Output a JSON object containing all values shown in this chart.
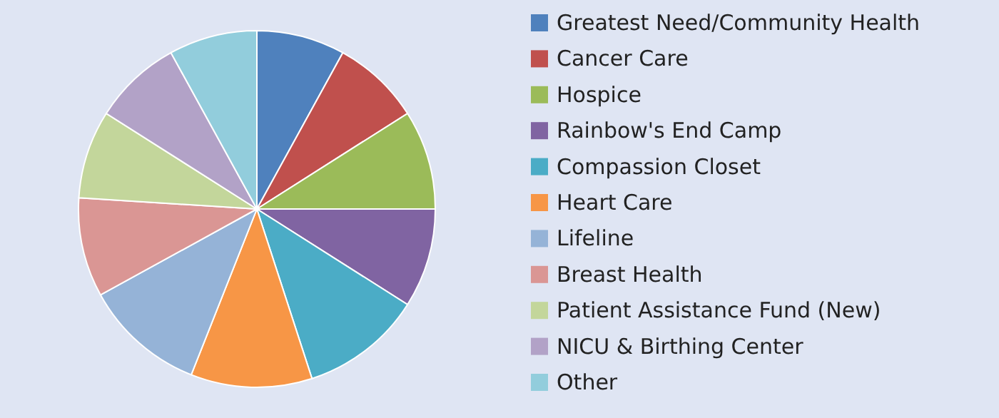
{
  "chart_data": {
    "type": "pie",
    "categories": [
      "Greatest Need/Community Health",
      "Cancer Care",
      "Hospice",
      "Rainbow's End Camp",
      "Compassion Closet",
      "Heart Care",
      "Lifeline",
      "Breast Health",
      "Patient Assistance Fund (New)",
      "NICU & Birthing Center",
      "Other"
    ],
    "values": [
      8,
      8,
      9,
      9,
      11,
      11,
      11,
      9,
      8,
      8,
      8
    ],
    "colors": [
      "#4f81bd",
      "#c0504d",
      "#9bbb59",
      "#8064a2",
      "#4bacc6",
      "#f79646",
      "#95b3d7",
      "#da9694",
      "#c3d69b",
      "#b2a2c7",
      "#92cddc"
    ],
    "legend": "right"
  }
}
